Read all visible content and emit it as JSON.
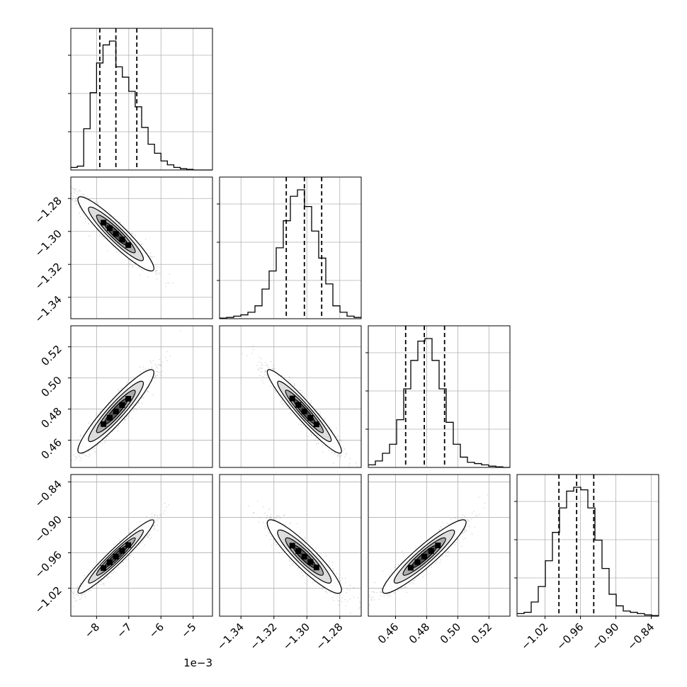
{
  "chart_data": {
    "type": "corner",
    "title": "",
    "grid": true,
    "colors": {
      "line": "#000000",
      "grid": "#b0b0b0",
      "scatter": "#7f7f7f",
      "background": "#ffffff"
    },
    "parameters": [
      {
        "index": 0,
        "range": [
          -0.0088,
          -0.0044
        ],
        "scale_offset_label": "1e−3",
        "ticks": [
          {
            "value": -0.008,
            "label": "−8"
          },
          {
            "value": -0.007,
            "label": "−7"
          },
          {
            "value": -0.006,
            "label": "−6"
          },
          {
            "value": -0.005,
            "label": "−5"
          }
        ],
        "quantiles": [
          -0.0079,
          -0.0074,
          -0.00675
        ],
        "histogram": {
          "bin_start": -0.0088,
          "bin_width": 0.0002,
          "counts": [
            0.02,
            0.03,
            0.32,
            0.6,
            0.83,
            0.97,
            1.0,
            0.8,
            0.72,
            0.61,
            0.49,
            0.33,
            0.2,
            0.13,
            0.07,
            0.04,
            0.02,
            0.01,
            0.005,
            0.0,
            0.0,
            0.0
          ]
        }
      },
      {
        "index": 1,
        "range": [
          -1.353,
          -1.267
        ],
        "ticks": [
          {
            "value": -1.34,
            "label": "−1.34"
          },
          {
            "value": -1.32,
            "label": "−1.32"
          },
          {
            "value": -1.3,
            "label": "−1.30"
          },
          {
            "value": -1.28,
            "label": "−1.28"
          }
        ],
        "quantiles": [
          -1.3125,
          -1.3015,
          -1.291
        ],
        "histogram": {
          "bin_start": -1.353,
          "bin_width": 0.0043,
          "counts": [
            0.005,
            0.01,
            0.02,
            0.03,
            0.05,
            0.1,
            0.23,
            0.37,
            0.55,
            0.76,
            0.95,
            1.0,
            0.87,
            0.68,
            0.47,
            0.27,
            0.1,
            0.05,
            0.02,
            0.01
          ]
        }
      },
      {
        "index": 2,
        "range": [
          0.4425,
          0.5335
        ],
        "ticks": [
          {
            "value": 0.46,
            "label": "0.46"
          },
          {
            "value": 0.48,
            "label": "0.48"
          },
          {
            "value": 0.5,
            "label": "0.50"
          },
          {
            "value": 0.52,
            "label": "0.52"
          }
        ],
        "quantiles": [
          0.4665,
          0.4785,
          0.4915
        ],
        "histogram": {
          "bin_start": 0.4425,
          "bin_width": 0.00455,
          "counts": [
            0.02,
            0.05,
            0.11,
            0.18,
            0.37,
            0.61,
            0.83,
            0.98,
            1.0,
            0.83,
            0.61,
            0.35,
            0.18,
            0.08,
            0.04,
            0.03,
            0.02,
            0.01,
            0.005,
            0.0
          ]
        }
      },
      {
        "index": 3,
        "range": [
          -1.0675,
          -0.8275
        ],
        "ticks": [
          {
            "value": -1.02,
            "label": "−1.02"
          },
          {
            "value": -0.96,
            "label": "−0.96"
          },
          {
            "value": -0.9,
            "label": "−0.90"
          },
          {
            "value": -0.84,
            "label": "−0.84"
          }
        ],
        "quantiles": [
          -0.9965,
          -0.9665,
          -0.9375
        ],
        "histogram": {
          "bin_start": -1.0675,
          "bin_width": 0.012,
          "counts": [
            0.02,
            0.03,
            0.11,
            0.23,
            0.43,
            0.65,
            0.84,
            0.97,
            1.0,
            0.98,
            0.84,
            0.59,
            0.37,
            0.17,
            0.08,
            0.04,
            0.03,
            0.02,
            0.01,
            0.005
          ]
        }
      }
    ],
    "pairs": [
      {
        "x": 0,
        "y": 1,
        "center": [
          -0.0074,
          -1.3015
        ],
        "sd": [
          0.00055,
          0.0105
        ],
        "rho": -0.93
      },
      {
        "x": 0,
        "y": 2,
        "center": [
          -0.0074,
          0.4785
        ],
        "sd": [
          0.00055,
          0.0125
        ],
        "rho": 0.93
      },
      {
        "x": 1,
        "y": 2,
        "center": [
          -1.3015,
          0.4785
        ],
        "sd": [
          0.0105,
          0.0125
        ],
        "rho": -0.95
      },
      {
        "x": 0,
        "y": 3,
        "center": [
          -0.0074,
          -0.9665
        ],
        "sd": [
          0.00055,
          0.029
        ],
        "rho": 0.96
      },
      {
        "x": 1,
        "y": 3,
        "center": [
          -1.3015,
          -0.9665
        ],
        "sd": [
          0.0105,
          0.029
        ],
        "rho": -0.91
      },
      {
        "x": 2,
        "y": 3,
        "center": [
          0.4785,
          -0.9665
        ],
        "sd": [
          0.0125,
          0.029
        ],
        "rho": 0.93
      }
    ]
  }
}
